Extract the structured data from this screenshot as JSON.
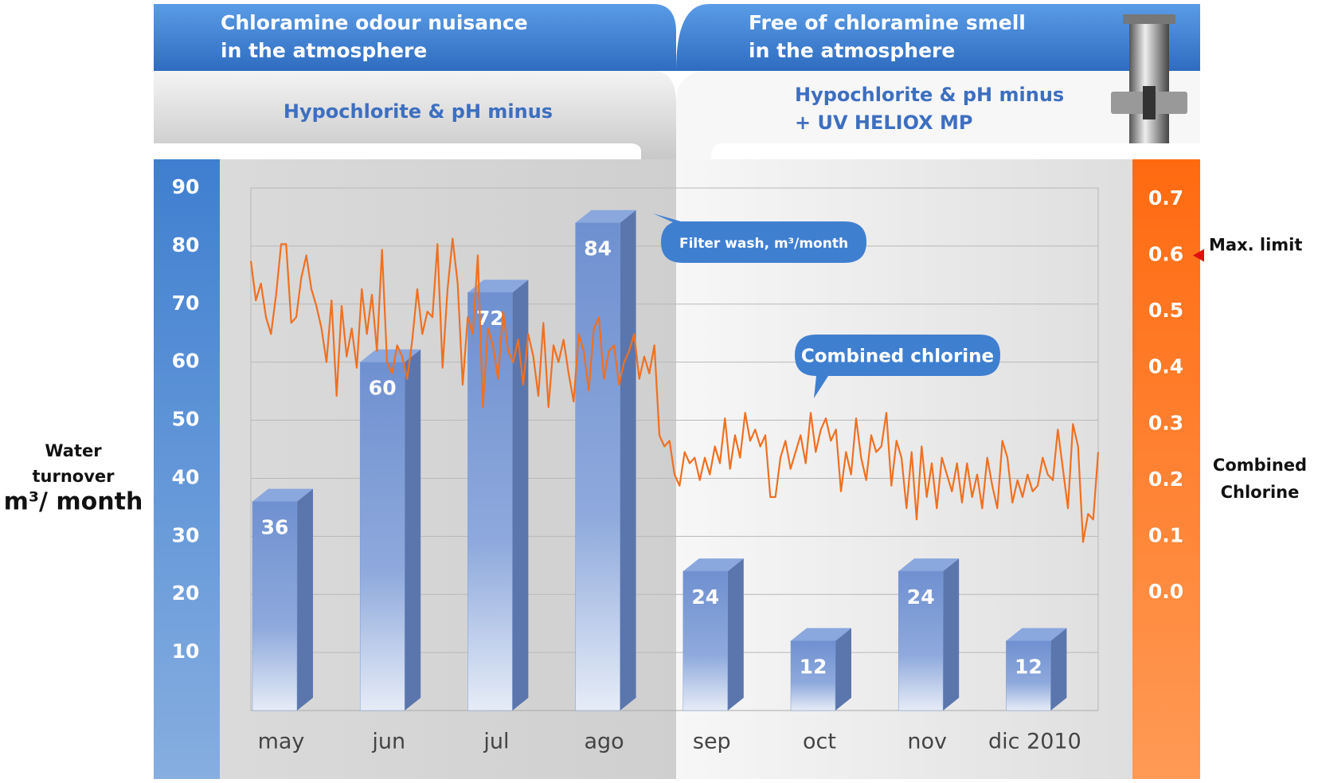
{
  "header": {
    "left_title": [
      "Chloramine odour nuisance",
      "in the atmosphere"
    ],
    "right_title": [
      "Free of chloramine smell",
      "in the atmosphere"
    ],
    "left_subtitle": [
      "Hypochlorite & pH minus"
    ],
    "right_subtitle": [
      "Hypochlorite & pH minus",
      "+ UV HELIOX MP"
    ]
  },
  "chart_data": [
    {
      "type": "bar",
      "categories": [
        "may",
        "jun",
        "jul",
        "ago",
        "sep",
        "oct",
        "nov",
        "dic 2010"
      ],
      "series": [
        {
          "name": "Filter wash, m³/month",
          "color": "#7b9bd4",
          "values": [
            36,
            60,
            72,
            84,
            24,
            12,
            24,
            12
          ]
        }
      ],
      "ylim": [
        0,
        90
      ],
      "yticks": [
        10,
        20,
        30,
        40,
        50,
        60,
        70,
        80,
        90
      ],
      "grid": true,
      "ylabel": [
        "Water",
        "turnover",
        "m³/ month"
      ]
    },
    {
      "type": "line",
      "series": [
        {
          "name": "Combined chlorine",
          "color": "#f07020",
          "axis": "y2",
          "values": [
            0.59,
            0.52,
            0.55,
            0.49,
            0.46,
            0.53,
            0.62,
            0.62,
            0.48,
            0.49,
            0.56,
            0.6,
            0.54,
            0.51,
            0.47,
            0.41,
            0.52,
            0.35,
            0.51,
            0.42,
            0.47,
            0.4,
            0.54,
            0.46,
            0.53,
            0.43,
            0.61,
            0.41,
            0.39,
            0.44,
            0.42,
            0.38,
            0.45,
            0.54,
            0.46,
            0.5,
            0.49,
            0.62,
            0.4,
            0.54,
            0.63,
            0.55,
            0.37,
            0.49,
            0.46,
            0.6,
            0.33,
            0.47,
            0.44,
            0.38,
            0.5,
            0.43,
            0.41,
            0.45,
            0.37,
            0.46,
            0.42,
            0.35,
            0.48,
            0.33,
            0.44,
            0.41,
            0.45,
            0.39,
            0.34,
            0.46,
            0.43,
            0.36,
            0.47,
            0.49,
            0.38,
            0.43,
            0.44,
            0.37,
            0.41,
            0.43,
            0.46,
            0.38,
            0.42,
            0.39,
            0.44,
            0.28,
            0.26,
            0.27,
            0.21,
            0.19,
            0.25,
            0.23,
            0.24,
            0.2,
            0.24,
            0.21,
            0.26,
            0.23,
            0.31,
            0.22,
            0.28,
            0.24,
            0.32,
            0.27,
            0.29,
            0.26,
            0.28,
            0.17,
            0.17,
            0.24,
            0.27,
            0.22,
            0.25,
            0.28,
            0.23,
            0.32,
            0.25,
            0.29,
            0.31,
            0.27,
            0.29,
            0.18,
            0.25,
            0.21,
            0.31,
            0.24,
            0.2,
            0.28,
            0.25,
            0.26,
            0.32,
            0.19,
            0.27,
            0.24,
            0.15,
            0.25,
            0.13,
            0.26,
            0.17,
            0.23,
            0.15,
            0.24,
            0.21,
            0.18,
            0.23,
            0.16,
            0.23,
            0.17,
            0.21,
            0.15,
            0.24,
            0.19,
            0.15,
            0.27,
            0.24,
            0.16,
            0.2,
            0.17,
            0.21,
            0.18,
            0.19,
            0.24,
            0.21,
            0.2,
            0.29,
            0.22,
            0.15,
            0.3,
            0.26,
            0.09,
            0.14,
            0.13,
            0.25
          ]
        }
      ],
      "y2lim": [
        -0.21,
        0.72
      ],
      "y2ticks": [
        {
          "value": 0,
          "label": "0.0"
        },
        0.1,
        0.2,
        0.3,
        0.4,
        0.5,
        0.6,
        0.7
      ],
      "ylabel": [
        "Combined",
        "Chlorine"
      ],
      "annotations": [
        {
          "text": "Max. limit",
          "y": 0.6
        }
      ]
    }
  ]
}
